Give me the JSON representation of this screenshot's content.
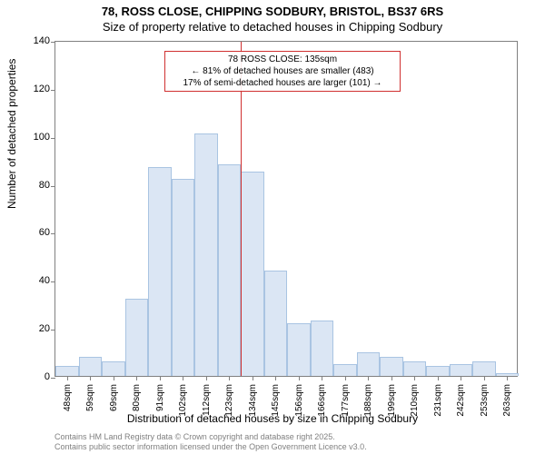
{
  "title_line1": "78, ROSS CLOSE, CHIPPING SODBURY, BRISTOL, BS37 6RS",
  "title_line2": "Size of property relative to detached houses in Chipping Sodbury",
  "y_axis_label": "Number of detached properties",
  "x_axis_label": "Distribution of detached houses by size in Chipping Sodbury",
  "footer_line1": "Contains HM Land Registry data © Crown copyright and database right 2025.",
  "footer_line2": "Contains public sector information licensed under the Open Government Licence v3.0.",
  "chart": {
    "type": "histogram",
    "ylim": [
      0,
      140
    ],
    "ytick_step": 20,
    "x_categories": [
      "48sqm",
      "59sqm",
      "69sqm",
      "80sqm",
      "91sqm",
      "102sqm",
      "112sqm",
      "123sqm",
      "134sqm",
      "145sqm",
      "156sqm",
      "166sqm",
      "177sqm",
      "188sqm",
      "199sqm",
      "210sqm",
      "231sqm",
      "242sqm",
      "253sqm",
      "263sqm"
    ],
    "bar_values": [
      4,
      8,
      6,
      32,
      87,
      82,
      101,
      88,
      85,
      44,
      22,
      23,
      5,
      10,
      8,
      6,
      4,
      5,
      6,
      1
    ],
    "bar_fill": "#dbe6f4",
    "bar_stroke": "#a9c4e2",
    "axis_color": "#808080",
    "background_color": "#ffffff",
    "marker": {
      "x_index": 8,
      "line_color": "#d03030",
      "box_border_color": "#d03030",
      "lines": [
        "78 ROSS CLOSE: 135sqm",
        "← 81% of detached houses are smaller (483)",
        "17% of semi-detached houses are larger (101) →"
      ]
    }
  }
}
